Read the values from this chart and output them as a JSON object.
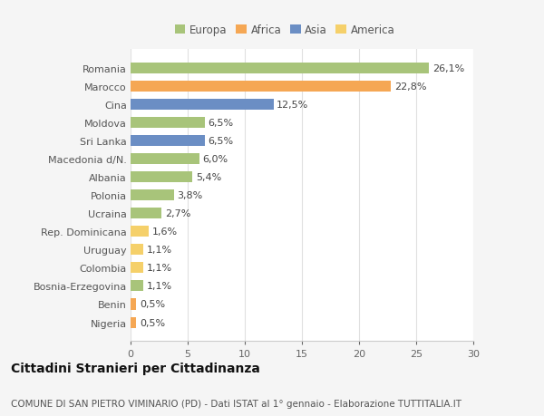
{
  "categories": [
    "Nigeria",
    "Benin",
    "Bosnia-Erzegovina",
    "Colombia",
    "Uruguay",
    "Rep. Dominicana",
    "Ucraina",
    "Polonia",
    "Albania",
    "Macedonia d/N.",
    "Sri Lanka",
    "Moldova",
    "Cina",
    "Marocco",
    "Romania"
  ],
  "values": [
    0.5,
    0.5,
    1.1,
    1.1,
    1.1,
    1.6,
    2.7,
    3.8,
    5.4,
    6.0,
    6.5,
    6.5,
    12.5,
    22.8,
    26.1
  ],
  "labels": [
    "0,5%",
    "0,5%",
    "1,1%",
    "1,1%",
    "1,1%",
    "1,6%",
    "2,7%",
    "3,8%",
    "5,4%",
    "6,0%",
    "6,5%",
    "6,5%",
    "12,5%",
    "22,8%",
    "26,1%"
  ],
  "colors": [
    "#f5a754",
    "#f5a754",
    "#a8c47a",
    "#f5d06a",
    "#f5d06a",
    "#f5d06a",
    "#a8c47a",
    "#a8c47a",
    "#a8c47a",
    "#a8c47a",
    "#6b8ec4",
    "#a8c47a",
    "#6b8ec4",
    "#f5a754",
    "#a8c47a"
  ],
  "legend": {
    "Europa": "#a8c47a",
    "Africa": "#f5a754",
    "Asia": "#6b8ec4",
    "America": "#f5d06a"
  },
  "xlim": [
    0,
    30
  ],
  "xticks": [
    0,
    5,
    10,
    15,
    20,
    25,
    30
  ],
  "title": "Cittadini Stranieri per Cittadinanza",
  "subtitle": "COMUNE DI SAN PIETRO VIMINARIO (PD) - Dati ISTAT al 1° gennaio - Elaborazione TUTTITALIA.IT",
  "background_color": "#f5f5f5",
  "plot_background": "#ffffff",
  "grid_color": "#e0e0e0",
  "bar_height": 0.6,
  "label_fontsize": 8,
  "tick_fontsize": 8,
  "ylabel_fontsize": 8,
  "title_fontsize": 10,
  "subtitle_fontsize": 7.5,
  "legend_fontsize": 8.5
}
